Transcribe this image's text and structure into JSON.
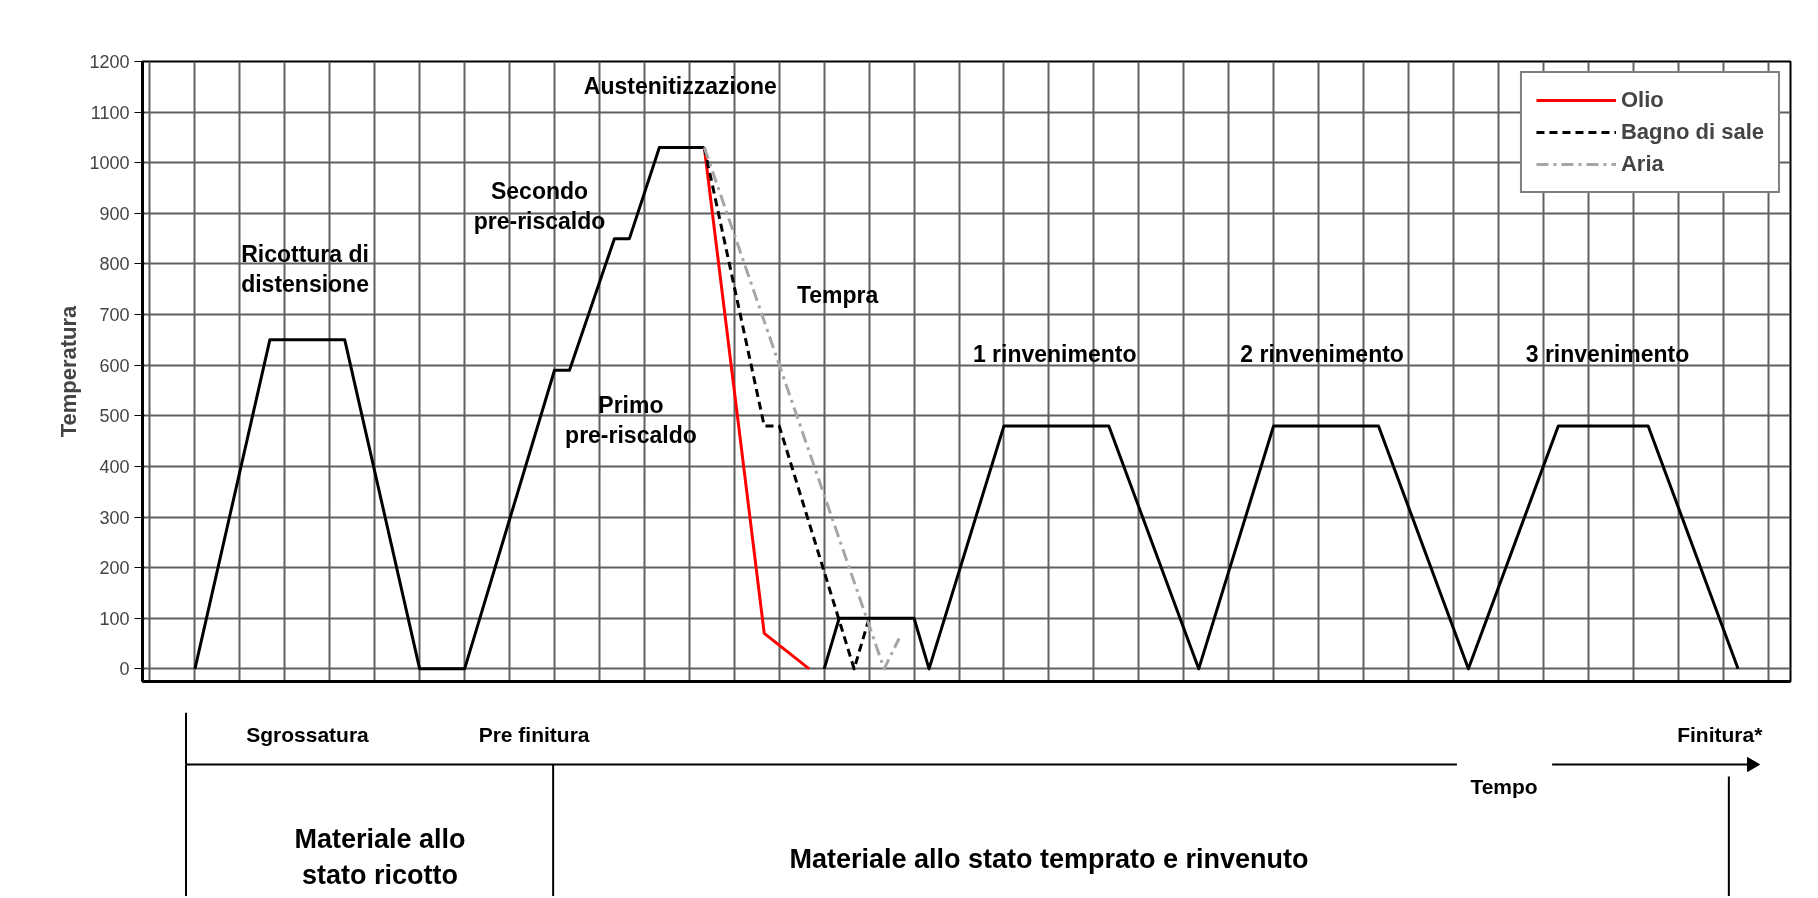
{
  "chart_data": {
    "type": "line",
    "xlabel": "Tempo",
    "ylabel": "Temperatura",
    "categories": [
      null,
      null,
      null,
      null,
      null,
      null,
      null,
      null,
      null,
      null,
      null,
      null,
      null,
      null,
      null,
      null,
      null,
      null,
      null,
      null,
      null,
      null,
      null,
      null,
      null,
      null,
      null,
      null,
      null,
      null,
      null,
      null,
      null,
      null,
      null,
      null,
      null,
      null,
      null,
      null,
      null,
      null,
      null,
      null,
      null,
      null,
      null,
      null,
      null,
      null,
      null,
      null,
      null,
      null,
      null,
      null,
      null,
      null,
      null,
      null,
      null,
      null,
      null,
      null,
      null,
      null,
      null,
      null,
      null,
      null,
      null,
      null,
      null,
      null,
      null,
      null,
      null,
      null,
      null,
      null,
      null,
      null,
      null,
      null,
      null,
      null,
      null,
      null,
      null,
      null,
      null,
      null,
      null,
      null,
      null,
      null,
      null,
      null,
      null,
      null,
      null,
      null,
      null,
      null,
      null,
      null,
      null,
      null,
      null,
      null
    ],
    "ylim": [
      -25,
      1200
    ],
    "yticks": [
      0,
      100,
      200,
      300,
      400,
      500,
      600,
      700,
      800,
      900,
      1000,
      1100,
      1200
    ],
    "tick_labels": "y",
    "grid": true,
    "legend": "top right",
    "series": [
      {
        "color": "#000000",
        "line_style": "solid",
        "values": [
          null,
          null,
          null,
          0,
          null,
          null,
          null,
          null,
          650,
          null,
          null,
          null,
          null,
          650,
          null,
          null,
          null,
          null,
          0,
          null,
          null,
          0,
          null,
          null,
          null,
          null,
          null,
          590,
          590,
          null,
          null,
          850,
          850,
          null,
          1030,
          null,
          null,
          1030,
          null,
          null,
          null,
          null,
          null,
          null,
          null,
          null,
          null,
          null,
          null,
          null,
          null,
          null,
          null,
          null,
          null,
          null,
          null,
          null,
          null,
          null,
          null,
          null,
          null,
          null,
          null,
          null,
          null,
          null,
          null,
          null,
          null,
          null,
          null,
          null,
          null,
          null,
          null,
          null,
          null,
          null,
          null,
          null,
          null,
          null,
          null,
          null,
          null,
          null,
          null,
          null,
          null,
          null,
          null,
          null,
          null,
          null,
          null,
          null,
          null,
          null,
          null,
          null,
          null,
          null,
          null,
          null,
          null,
          null,
          null,
          null
        ]
      },
      {
        "color": "#000000",
        "line_style": "solid",
        "values": [
          null,
          null,
          null,
          null,
          null,
          null,
          null,
          null,
          null,
          null,
          null,
          null,
          null,
          null,
          null,
          null,
          null,
          null,
          null,
          null,
          null,
          null,
          null,
          null,
          null,
          null,
          null,
          null,
          null,
          null,
          null,
          null,
          null,
          null,
          null,
          null,
          null,
          null,
          null,
          null,
          null,
          null,
          null,
          null,
          null,
          0,
          100,
          null,
          null,
          null,
          null,
          100,
          0,
          null,
          null,
          null,
          null,
          480,
          null,
          null,
          null,
          null,
          null,
          null,
          480,
          null,
          null,
          null,
          null,
          null,
          0,
          null,
          null,
          null,
          null,
          480,
          null,
          null,
          null,
          null,
          null,
          null,
          480,
          null,
          null,
          null,
          null,
          null,
          0,
          null,
          null,
          null,
          null,
          null,
          480,
          null,
          null,
          null,
          null,
          null,
          480,
          null,
          null,
          null,
          null,
          null,
          0,
          null,
          null,
          null
        ]
      },
      {
        "name": "Olio",
        "color": "#ff0000",
        "line_style": "solid",
        "values": [
          null,
          null,
          null,
          null,
          null,
          null,
          null,
          null,
          null,
          null,
          null,
          null,
          null,
          null,
          null,
          null,
          null,
          null,
          null,
          null,
          null,
          null,
          null,
          null,
          null,
          null,
          null,
          null,
          null,
          null,
          null,
          null,
          null,
          null,
          null,
          null,
          null,
          1030,
          null,
          null,
          null,
          70,
          null,
          null,
          0,
          null,
          null,
          null,
          null,
          null,
          null,
          null,
          null,
          null,
          null,
          null,
          null,
          null,
          null,
          null,
          null,
          null,
          null,
          null,
          null,
          null,
          null,
          null,
          null,
          null,
          null,
          null,
          null,
          null,
          null,
          null,
          null,
          null,
          null,
          null,
          null,
          null,
          null,
          null,
          null,
          null,
          null,
          null,
          null,
          null,
          null,
          null,
          null,
          null,
          null,
          null,
          null,
          null,
          null,
          null,
          null,
          null,
          null,
          null,
          null,
          null,
          null,
          null,
          null,
          null
        ]
      },
      {
        "name": "Bagno di sale",
        "color": "#000000",
        "line_style": "dashed",
        "values": [
          null,
          null,
          null,
          null,
          null,
          null,
          null,
          null,
          null,
          null,
          null,
          null,
          null,
          null,
          null,
          null,
          null,
          null,
          null,
          null,
          null,
          null,
          null,
          null,
          null,
          null,
          null,
          null,
          null,
          null,
          null,
          null,
          null,
          null,
          null,
          null,
          null,
          1030,
          null,
          null,
          null,
          480,
          480,
          null,
          null,
          null,
          null,
          0,
          100,
          null,
          null,
          null,
          null,
          null,
          null,
          null,
          null,
          null,
          null,
          null,
          null,
          null,
          null,
          null,
          null,
          null,
          null,
          null,
          null,
          null,
          null,
          null,
          null,
          null,
          null,
          null,
          null,
          null,
          null,
          null,
          null,
          null,
          null,
          null,
          null,
          null,
          null,
          null,
          null,
          null,
          null,
          null,
          null,
          null,
          null,
          null,
          null,
          null,
          null,
          null,
          null,
          null,
          null,
          null,
          null,
          null,
          null,
          null,
          null,
          null
        ]
      },
      {
        "name": "Aria",
        "color": "#a6a6a6",
        "line_style": "dashdot",
        "values": [
          null,
          null,
          null,
          null,
          null,
          null,
          null,
          null,
          null,
          null,
          null,
          null,
          null,
          null,
          null,
          null,
          null,
          null,
          null,
          null,
          null,
          null,
          null,
          null,
          null,
          null,
          null,
          null,
          null,
          null,
          null,
          null,
          null,
          null,
          null,
          null,
          null,
          1030,
          null,
          null,
          null,
          null,
          null,
          null,
          null,
          null,
          null,
          null,
          null,
          0,
          60,
          null,
          null,
          null,
          null,
          null,
          null,
          null,
          null,
          null,
          null,
          null,
          null,
          null,
          null,
          null,
          null,
          null,
          null,
          null,
          null,
          null,
          null,
          null,
          null,
          null,
          null,
          null,
          null,
          null,
          null,
          null,
          null,
          null,
          null,
          null,
          null,
          null,
          null,
          null,
          null,
          null,
          null,
          null,
          null,
          null,
          null,
          null,
          null,
          null,
          null,
          null,
          null,
          null,
          null,
          null,
          null,
          null,
          null,
          null
        ]
      }
    ],
    "annotations": [
      "Ricottura di\ndistensione",
      "Secondo\npre-riscaldo",
      "Austenitizzazione",
      "Primo\npre-riscaldo",
      "Tempra",
      "1  rinvenimento",
      "2  rinvenimento",
      "3  rinvenimento",
      "Sgrossatura",
      "Pre finitura",
      "Finitura*",
      "Materiale allo\nstato ricotto",
      "Materiale allo stato temprato e rinvenuto"
    ]
  }
}
